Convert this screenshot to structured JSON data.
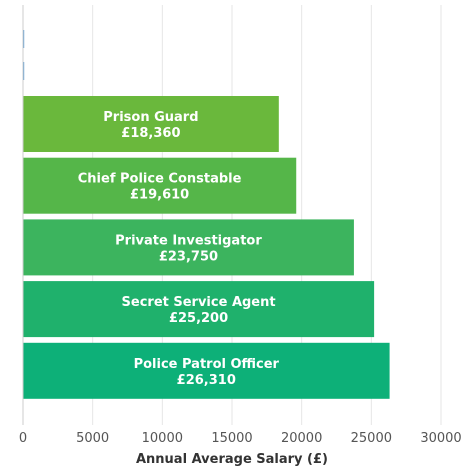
{
  "chart_data": {
    "type": "bar",
    "orientation": "horizontal",
    "xlabel": "Annual Average Salary (£)",
    "xlim": [
      0,
      30000
    ],
    "xticks": [
      0,
      5000,
      10000,
      15000,
      20000,
      25000,
      30000
    ],
    "grid": true,
    "bars": [
      {
        "name": "",
        "value_label": "",
        "value": 50,
        "color": "#5a9bd5"
      },
      {
        "name": "",
        "value_label": "",
        "value": 30,
        "color": "#5a9bd5"
      },
      {
        "name": "Prison Guard",
        "value_label": "£18,360",
        "value": 18360,
        "color": "#6ab83c"
      },
      {
        "name": "Chief Police Constable",
        "value_label": "£19,610",
        "value": 19610,
        "color": "#55b649"
      },
      {
        "name": "Private Investigator",
        "value_label": "£23,750",
        "value": 23750,
        "color": "#3cb45e"
      },
      {
        "name": "Secret Service Agent",
        "value_label": "£25,200",
        "value": 25200,
        "color": "#1fb16c"
      },
      {
        "name": "Police Patrol Officer",
        "value_label": "£26,310",
        "value": 26310,
        "color": "#0db078"
      }
    ]
  }
}
